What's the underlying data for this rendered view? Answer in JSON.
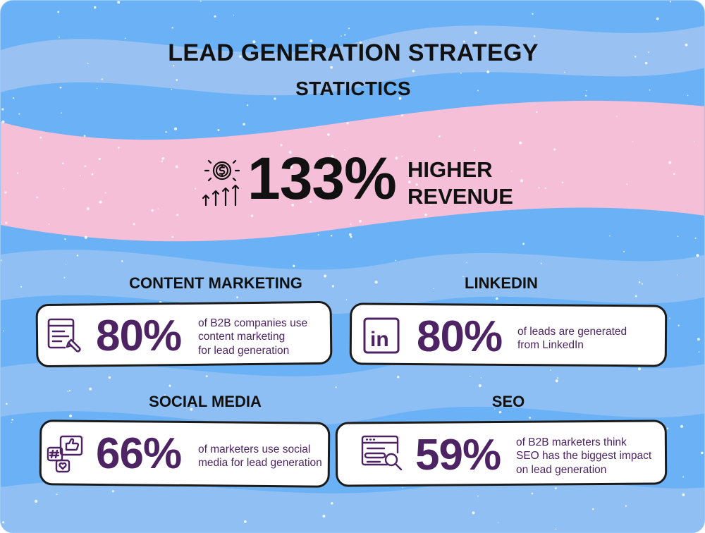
{
  "header": {
    "title": "LEAD GENERATION STRATEGY",
    "subtitle": "STATICTICS"
  },
  "hero": {
    "value": "133%",
    "label_line1": "HIGHER",
    "label_line2": "REVENUE",
    "icon": "dollar-growth-icon"
  },
  "stats": [
    {
      "title": "CONTENT MARKETING",
      "value": "80%",
      "description_lines": [
        "of B2B companies use",
        "content marketing",
        "for lead generation"
      ],
      "icon": "content-document-icon"
    },
    {
      "title": "LINKEDIN",
      "value": "80%",
      "description_lines": [
        "of leads are generated",
        "from LinkedIn"
      ],
      "icon": "linkedin-icon"
    },
    {
      "title": "SOCIAL MEDIA",
      "value": "66%",
      "description_lines": [
        "of marketers use social",
        "media for lead generation"
      ],
      "icon": "social-media-icon"
    },
    {
      "title": "SEO",
      "value": "59%",
      "description_lines": [
        "of B2B marketers think",
        "SEO has the biggest impact",
        "on lead generation"
      ],
      "icon": "seo-search-icon"
    }
  ],
  "colors": {
    "background": "#6ab1f6",
    "wave": "#a9c8f2",
    "pink_band": "#f6bfd8",
    "accent": "#4e2364",
    "text": "#111111"
  }
}
